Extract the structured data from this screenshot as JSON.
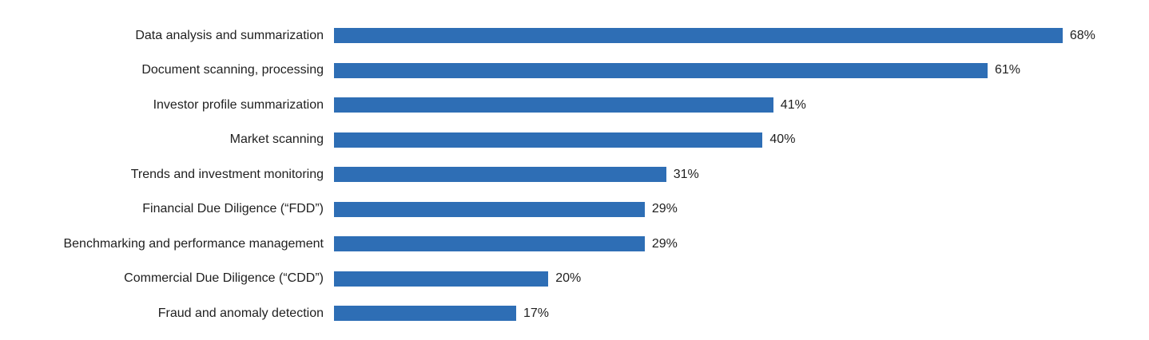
{
  "chart_data": {
    "type": "bar",
    "orientation": "horizontal",
    "title": "",
    "xlabel": "",
    "ylabel": "",
    "grid": false,
    "legend": false,
    "xlim": [
      0,
      76
    ],
    "bar_color": "#2e6eb5",
    "text_color": "#1f1f1f",
    "background_color": "#ffffff",
    "categories": [
      "Data analysis and summarization",
      "Document scanning, processing",
      "Investor profile summarization",
      "Market scanning",
      "Trends and investment monitoring",
      "Financial Due Diligence (“FDD”)",
      "Benchmarking and performance management",
      "Commercial Due Diligence (“CDD”)",
      "Fraud and anomaly detection"
    ],
    "values": [
      68,
      61,
      41,
      40,
      31,
      29,
      29,
      20,
      17
    ],
    "value_labels": [
      "68%",
      "61%",
      "41%",
      "40%",
      "31%",
      "29%",
      "29%",
      "20%",
      "17%"
    ]
  }
}
